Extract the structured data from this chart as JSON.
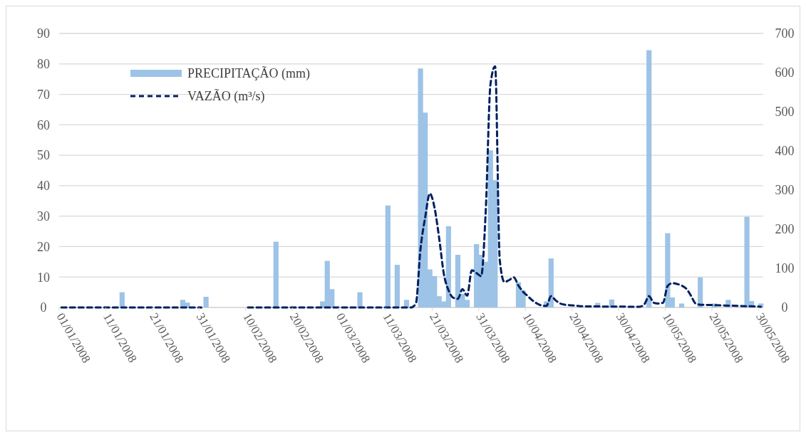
{
  "chart_data": {
    "type": "bar",
    "legend": "top left",
    "grid": "y",
    "xlim": [
      "2008-01-01",
      "2008-05-31"
    ],
    "xticks": [
      {
        "value": "2008-01-01",
        "label": "01/01/2008"
      },
      {
        "value": "2008-01-11",
        "label": "11/01/2008"
      },
      {
        "value": "2008-01-21",
        "label": "21/01/2008"
      },
      {
        "value": "2008-01-31",
        "label": "31/01/2008"
      },
      {
        "value": "2008-02-10",
        "label": "10/02/2008"
      },
      {
        "value": "2008-02-20",
        "label": "20/02/2008"
      },
      {
        "value": "2008-03-01",
        "label": "01/03/2008"
      },
      {
        "value": "2008-03-11",
        "label": "11/03/2008"
      },
      {
        "value": "2008-03-21",
        "label": "21/03/2008"
      },
      {
        "value": "2008-03-31",
        "label": "31/03/2008"
      },
      {
        "value": "2008-04-10",
        "label": "10/04/2008"
      },
      {
        "value": "2008-04-20",
        "label": "20/04/2008"
      },
      {
        "value": "2008-04-30",
        "label": "30/04/2008"
      },
      {
        "value": "2008-05-10",
        "label": "10/05/2008"
      },
      {
        "value": "2008-05-20",
        "label": "20/05/2008"
      },
      {
        "value": "2008-05-30",
        "label": "30/05/2008"
      }
    ],
    "ylim": [
      0,
      90
    ],
    "yticks": [
      0,
      10,
      20,
      30,
      40,
      50,
      60,
      70,
      80,
      90
    ],
    "y2lim": [
      0,
      700
    ],
    "y2ticks": [
      0,
      100,
      200,
      300,
      400,
      500,
      600,
      700
    ],
    "series": [
      {
        "name": "PRECIPITAÇÃO (mm)",
        "color": "#9dc3e6",
        "x": [
          "2008-01-14",
          "2008-01-27",
          "2008-01-28",
          "2008-02-01",
          "2008-02-16",
          "2008-02-26",
          "2008-02-27",
          "2008-02-28",
          "2008-03-05",
          "2008-03-11",
          "2008-03-13",
          "2008-03-15",
          "2008-03-18",
          "2008-03-19",
          "2008-03-20",
          "2008-03-21",
          "2008-03-22",
          "2008-03-23",
          "2008-03-24",
          "2008-03-26",
          "2008-03-27",
          "2008-03-28",
          "2008-03-30",
          "2008-03-31",
          "2008-04-01",
          "2008-04-02",
          "2008-04-03",
          "2008-04-08",
          "2008-04-09",
          "2008-04-14",
          "2008-04-15",
          "2008-04-25",
          "2008-04-28",
          "2008-05-06",
          "2008-05-10",
          "2008-05-11",
          "2008-05-13",
          "2008-05-17",
          "2008-05-20",
          "2008-05-23",
          "2008-05-27",
          "2008-05-28",
          "2008-05-30"
        ],
        "values": [
          5,
          2.5,
          1.6,
          3.5,
          21.6,
          2,
          15.3,
          6,
          5,
          33.5,
          14,
          2.5,
          78.5,
          64,
          12.5,
          10.3,
          3.7,
          2,
          26.7,
          17.3,
          4.5,
          2.5,
          20.8,
          17.3,
          15,
          51.6,
          41.8,
          8.3,
          5.6,
          2,
          16.1,
          1.5,
          2.6,
          84.5,
          24.4,
          3.3,
          1.3,
          9.9,
          1.3,
          2.5,
          29.8,
          2.1,
          1.3
        ]
      },
      {
        "name": "VAZÃO (m³/s)",
        "type": "line",
        "axis": "y2",
        "color": "#002060",
        "line_style": "dashed",
        "marker": "none",
        "x": [
          "2008-01-01",
          "2008-01-31",
          "2008-02-05",
          "2008-02-10",
          "2008-03-16",
          "2008-03-17",
          "2008-03-18",
          "2008-03-19",
          "2008-03-20",
          "2008-03-21",
          "2008-03-22",
          "2008-03-23",
          "2008-03-24",
          "2008-03-25",
          "2008-03-26",
          "2008-03-27",
          "2008-03-28",
          "2008-03-29",
          "2008-03-30",
          "2008-03-31",
          "2008-04-01",
          "2008-04-02",
          "2008-04-03",
          "2008-04-04",
          "2008-04-05",
          "2008-04-06",
          "2008-04-07",
          "2008-04-08",
          "2008-04-09",
          "2008-04-10",
          "2008-04-11",
          "2008-04-12",
          "2008-04-13",
          "2008-04-14",
          "2008-04-15",
          "2008-04-16",
          "2008-04-17",
          "2008-04-18",
          "2008-04-20",
          "2008-04-22",
          "2008-05-04",
          "2008-05-05",
          "2008-05-06",
          "2008-05-07",
          "2008-05-08",
          "2008-05-09",
          "2008-05-10",
          "2008-05-11",
          "2008-05-12",
          "2008-05-13",
          "2008-05-14",
          "2008-05-15",
          "2008-05-16",
          "2008-05-17",
          "2008-05-20",
          "2008-05-25",
          "2008-05-30"
        ],
        "values": [
          0,
          0,
          null,
          0,
          0,
          10,
          150,
          230,
          291,
          255,
          177,
          86,
          44,
          25,
          22,
          47,
          30,
          95,
          88,
          80,
          250,
          570,
          616,
          120,
          65,
          70,
          77,
          56,
          40,
          29,
          18,
          10,
          5,
          4,
          29,
          18,
          10,
          7,
          5,
          3,
          2,
          8,
          29,
          12,
          10,
          12,
          55,
          62,
          60,
          56,
          48,
          30,
          10,
          7,
          6,
          4,
          2
        ]
      }
    ]
  }
}
